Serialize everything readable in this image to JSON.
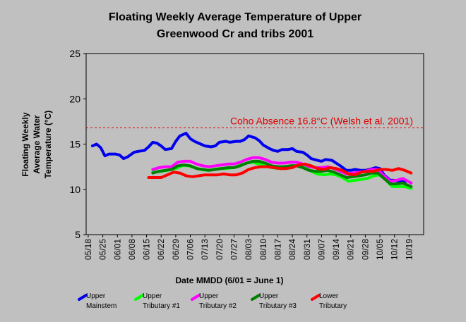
{
  "chart_data": {
    "type": "line",
    "title_line1": "Floating Weekly Average Temperature of Upper",
    "title_line2": "Greenwood Cr and tribs 2001",
    "xlabel": "Date MMDD (6/01 = June 1)",
    "ylabel_lines": [
      "Floating Weekly",
      "Average Water",
      "Temperature (°C)"
    ],
    "ylim": [
      5,
      25
    ],
    "yticks": [
      5,
      10,
      15,
      20,
      25
    ],
    "x_tick_labels": [
      "05/18",
      "05/25",
      "06/01",
      "06/08",
      "06/15",
      "06/22",
      "06/29",
      "07/06",
      "07/13",
      "07/20",
      "07/27",
      "08/03",
      "08/10",
      "08/17",
      "08/24",
      "08/31",
      "09/07",
      "09/14",
      "09/21",
      "09/28",
      "10/05",
      "10/12",
      "10/19"
    ],
    "x_tick_days": [
      0,
      7,
      14,
      21,
      28,
      35,
      42,
      49,
      56,
      63,
      70,
      77,
      84,
      91,
      98,
      105,
      112,
      119,
      126,
      133,
      140,
      147,
      154
    ],
    "xlim": [
      -1,
      161
    ],
    "threshold": {
      "value": 16.8,
      "label": "Coho Absence 16.8°C (Welsh et al. 2001)",
      "color": "#dd0000"
    },
    "series": [
      {
        "name_lines": [
          "Upper",
          "Mainstem"
        ],
        "color": "#0000ee",
        "points": [
          [
            2,
            14.8
          ],
          [
            4,
            15.0
          ],
          [
            6,
            14.6
          ],
          [
            8,
            13.7
          ],
          [
            10,
            13.9
          ],
          [
            13,
            13.9
          ],
          [
            15,
            13.8
          ],
          [
            17,
            13.4
          ],
          [
            19,
            13.6
          ],
          [
            22,
            14.1
          ],
          [
            24,
            14.2
          ],
          [
            27,
            14.3
          ],
          [
            29,
            14.7
          ],
          [
            31,
            15.2
          ],
          [
            33,
            15.1
          ],
          [
            35,
            14.8
          ],
          [
            37,
            14.4
          ],
          [
            40,
            14.5
          ],
          [
            42,
            15.3
          ],
          [
            44,
            15.9
          ],
          [
            47,
            16.2
          ],
          [
            49,
            15.6
          ],
          [
            51,
            15.3
          ],
          [
            54,
            15.0
          ],
          [
            56,
            14.8
          ],
          [
            59,
            14.7
          ],
          [
            61,
            14.8
          ],
          [
            63,
            15.2
          ],
          [
            66,
            15.3
          ],
          [
            68,
            15.2
          ],
          [
            71,
            15.3
          ],
          [
            73,
            15.3
          ],
          [
            75,
            15.5
          ],
          [
            77,
            15.9
          ],
          [
            80,
            15.7
          ],
          [
            82,
            15.4
          ],
          [
            84,
            14.9
          ],
          [
            87,
            14.5
          ],
          [
            89,
            14.3
          ],
          [
            91,
            14.2
          ],
          [
            93,
            14.4
          ],
          [
            96,
            14.4
          ],
          [
            98,
            14.5
          ],
          [
            100,
            14.2
          ],
          [
            103,
            14.1
          ],
          [
            105,
            13.8
          ],
          [
            107,
            13.4
          ],
          [
            110,
            13.2
          ],
          [
            112,
            13.1
          ],
          [
            114,
            13.3
          ],
          [
            117,
            13.2
          ],
          [
            119,
            12.9
          ],
          [
            121,
            12.6
          ],
          [
            124,
            12.1
          ],
          [
            126,
            12.1
          ],
          [
            128,
            12.2
          ],
          [
            131,
            12.1
          ],
          [
            133,
            12.1
          ],
          [
            135,
            12.2
          ],
          [
            138,
            12.4
          ],
          [
            140,
            12.3
          ],
          [
            142,
            11.6
          ],
          [
            145,
            11.0
          ],
          [
            147,
            11.0
          ],
          [
            149,
            10.9
          ],
          [
            152,
            10.8
          ]
        ]
      },
      {
        "name_lines": [
          "Upper",
          "Tributary #1"
        ],
        "color": "#00ff00",
        "points": [
          [
            31,
            11.9
          ],
          [
            35,
            12.0
          ],
          [
            38,
            12.1
          ],
          [
            42,
            12.3
          ],
          [
            45,
            12.6
          ],
          [
            48,
            12.6
          ],
          [
            51,
            12.4
          ],
          [
            54,
            12.2
          ],
          [
            57,
            12.1
          ],
          [
            60,
            12.2
          ],
          [
            63,
            12.3
          ],
          [
            66,
            12.3
          ],
          [
            70,
            12.4
          ],
          [
            73,
            12.7
          ],
          [
            76,
            12.9
          ],
          [
            79,
            13.0
          ],
          [
            82,
            12.8
          ],
          [
            85,
            12.6
          ],
          [
            88,
            12.4
          ],
          [
            91,
            12.3
          ],
          [
            94,
            12.4
          ],
          [
            98,
            12.6
          ],
          [
            101,
            12.6
          ],
          [
            104,
            12.5
          ],
          [
            107,
            12.0
          ],
          [
            110,
            11.7
          ],
          [
            113,
            11.6
          ],
          [
            116,
            11.7
          ],
          [
            119,
            11.6
          ],
          [
            122,
            11.3
          ],
          [
            125,
            10.9
          ],
          [
            128,
            11.0
          ],
          [
            131,
            11.1
          ],
          [
            134,
            11.2
          ],
          [
            137,
            11.5
          ],
          [
            140,
            11.6
          ],
          [
            143,
            11.0
          ],
          [
            146,
            10.3
          ],
          [
            149,
            10.3
          ],
          [
            152,
            10.3
          ],
          [
            155,
            10.1
          ]
        ]
      },
      {
        "name_lines": [
          "Upper",
          "Tributary #2"
        ],
        "color": "#ff00ff",
        "points": [
          [
            31,
            12.2
          ],
          [
            34,
            12.4
          ],
          [
            37,
            12.5
          ],
          [
            40,
            12.5
          ],
          [
            43,
            13.0
          ],
          [
            46,
            13.1
          ],
          [
            49,
            13.1
          ],
          [
            52,
            12.8
          ],
          [
            55,
            12.6
          ],
          [
            58,
            12.5
          ],
          [
            61,
            12.6
          ],
          [
            64,
            12.7
          ],
          [
            67,
            12.8
          ],
          [
            70,
            12.8
          ],
          [
            73,
            13.0
          ],
          [
            76,
            13.3
          ],
          [
            79,
            13.5
          ],
          [
            82,
            13.5
          ],
          [
            85,
            13.3
          ],
          [
            88,
            13.0
          ],
          [
            91,
            12.9
          ],
          [
            94,
            12.9
          ],
          [
            97,
            13.0
          ],
          [
            100,
            13.0
          ],
          [
            103,
            12.8
          ],
          [
            106,
            12.5
          ],
          [
            109,
            12.4
          ],
          [
            112,
            12.4
          ],
          [
            115,
            12.5
          ],
          [
            118,
            12.3
          ],
          [
            121,
            12.0
          ],
          [
            124,
            11.7
          ],
          [
            127,
            11.8
          ],
          [
            130,
            11.9
          ],
          [
            133,
            12.0
          ],
          [
            136,
            12.2
          ],
          [
            139,
            12.2
          ],
          [
            142,
            11.5
          ],
          [
            145,
            10.9
          ],
          [
            148,
            11.0
          ],
          [
            151,
            11.2
          ],
          [
            155,
            10.7
          ]
        ]
      },
      {
        "name_lines": [
          "Upper",
          "Tributary #3"
        ],
        "color": "#008000",
        "points": [
          [
            31,
            11.8
          ],
          [
            34,
            12.0
          ],
          [
            37,
            12.1
          ],
          [
            40,
            12.2
          ],
          [
            43,
            12.6
          ],
          [
            46,
            12.7
          ],
          [
            49,
            12.6
          ],
          [
            52,
            12.3
          ],
          [
            55,
            12.2
          ],
          [
            58,
            12.1
          ],
          [
            61,
            12.2
          ],
          [
            64,
            12.3
          ],
          [
            67,
            12.4
          ],
          [
            70,
            12.4
          ],
          [
            73,
            12.6
          ],
          [
            76,
            12.9
          ],
          [
            79,
            13.1
          ],
          [
            82,
            13.1
          ],
          [
            85,
            12.9
          ],
          [
            88,
            12.6
          ],
          [
            91,
            12.5
          ],
          [
            94,
            12.5
          ],
          [
            97,
            12.6
          ],
          [
            100,
            12.6
          ],
          [
            103,
            12.4
          ],
          [
            106,
            12.1
          ],
          [
            109,
            12.0
          ],
          [
            112,
            12.0
          ],
          [
            115,
            12.1
          ],
          [
            118,
            11.9
          ],
          [
            121,
            11.6
          ],
          [
            124,
            11.3
          ],
          [
            127,
            11.4
          ],
          [
            130,
            11.5
          ],
          [
            133,
            11.6
          ],
          [
            136,
            11.8
          ],
          [
            139,
            11.8
          ],
          [
            142,
            11.2
          ],
          [
            145,
            10.6
          ],
          [
            148,
            10.6
          ],
          [
            151,
            10.7
          ],
          [
            155,
            10.3
          ]
        ]
      },
      {
        "name_lines": [
          "Lower",
          "Tributary"
        ],
        "color": "#ff0000",
        "points": [
          [
            29,
            11.3
          ],
          [
            32,
            11.3
          ],
          [
            35,
            11.3
          ],
          [
            38,
            11.6
          ],
          [
            41,
            11.9
          ],
          [
            44,
            11.8
          ],
          [
            47,
            11.5
          ],
          [
            50,
            11.4
          ],
          [
            53,
            11.5
          ],
          [
            56,
            11.6
          ],
          [
            59,
            11.6
          ],
          [
            62,
            11.6
          ],
          [
            65,
            11.7
          ],
          [
            68,
            11.6
          ],
          [
            71,
            11.6
          ],
          [
            74,
            11.8
          ],
          [
            77,
            12.2
          ],
          [
            80,
            12.4
          ],
          [
            83,
            12.5
          ],
          [
            86,
            12.5
          ],
          [
            89,
            12.4
          ],
          [
            92,
            12.3
          ],
          [
            95,
            12.3
          ],
          [
            98,
            12.4
          ],
          [
            101,
            12.7
          ],
          [
            104,
            12.8
          ],
          [
            107,
            12.6
          ],
          [
            110,
            12.3
          ],
          [
            113,
            12.2
          ],
          [
            116,
            12.4
          ],
          [
            119,
            12.3
          ],
          [
            122,
            12.1
          ],
          [
            125,
            11.7
          ],
          [
            128,
            11.6
          ],
          [
            131,
            11.9
          ],
          [
            134,
            12.0
          ],
          [
            137,
            12.0
          ],
          [
            140,
            12.2
          ],
          [
            143,
            12.2
          ],
          [
            146,
            12.1
          ],
          [
            149,
            12.3
          ],
          [
            152,
            12.1
          ],
          [
            155,
            11.8
          ]
        ]
      }
    ]
  }
}
